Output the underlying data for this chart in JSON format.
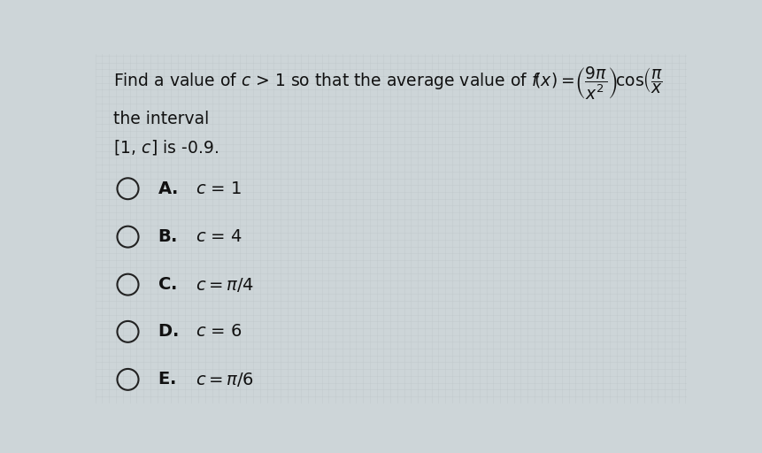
{
  "background_color": "#cdd5d8",
  "grid_color": "#bdc5c8",
  "text_color": "#111111",
  "title_fontsize": 13.5,
  "option_fontsize": 14,
  "fig_width": 8.62,
  "fig_height": 5.12,
  "options": [
    {
      "label": "A.",
      "math": "c = 1",
      "is_math": false
    },
    {
      "label": "B.",
      "math": "c = 4",
      "is_math": false
    },
    {
      "label": "C.",
      "math": "c = \\pi/4",
      "is_math": true
    },
    {
      "label": "D.",
      "math": "c = 6",
      "is_math": false
    },
    {
      "label": "E.",
      "math": "c = \\pi/6",
      "is_math": true
    }
  ]
}
